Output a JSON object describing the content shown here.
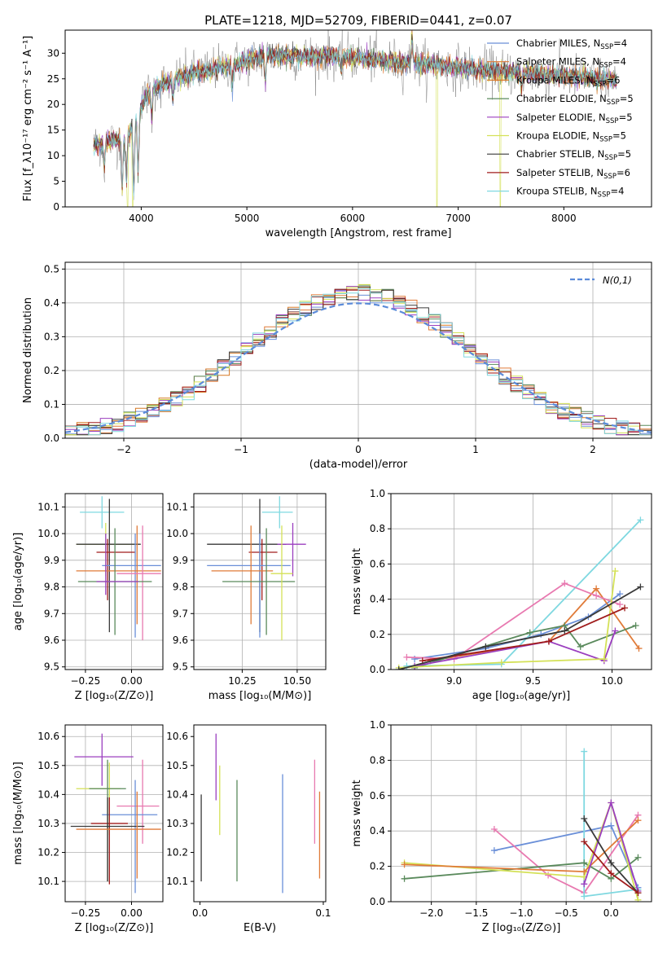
{
  "figure_title": "PLATE=1218, MJD=52709, FIBERID=0441, z=0.07",
  "colors": {
    "Chabrier MILES": "#6a8fd8",
    "Salpeter MILES": "#e07b39",
    "Kroupa MILES": "#d67824",
    "Chabrier ELODIE": "#5a8a5c",
    "Salpeter ELODIE": "#9b3fbf",
    "Kroupa ELODIE": "#d4e157",
    "Chabrier STELIB": "#3a3a3a",
    "Salpeter STELIB": "#a01c1c",
    "Kroupa STELIB": "#7fd8e0",
    "pink": "#e879b0",
    "grey": "#777777"
  },
  "chart_data": [
    {
      "id": "spectrum",
      "type": "line",
      "xlabel": "wavelength [Angstrom, rest frame]",
      "ylabel": "Flux [f_λ10^-17 erg cm^-2 s^-1 A^-1]",
      "xlim": [
        3280,
        8830
      ],
      "ylim": [
        0,
        34.5
      ],
      "xticks": [
        4000,
        5000,
        6000,
        7000,
        8000
      ],
      "yticks": [
        0,
        5,
        10,
        15,
        20,
        25,
        30
      ],
      "grid": false,
      "legend_position": "top-right",
      "legend": [
        {
          "label": "Chabrier MILES, N_SSP=4",
          "color": "#6a8fd8"
        },
        {
          "label": "Salpeter MILES, N_SSP=4",
          "color": "#e07b39"
        },
        {
          "label": "Kroupa MILES, N_SSP=6",
          "color": "#d67824"
        },
        {
          "label": "Chabrier ELODIE, N_SSP=5",
          "color": "#5a8a5c"
        },
        {
          "label": "Salpeter ELODIE, N_SSP=5",
          "color": "#9b3fbf"
        },
        {
          "label": "Kroupa ELODIE, N_SSP=5",
          "color": "#d4e157"
        },
        {
          "label": "Chabrier STELIB, N_SSP=5",
          "color": "#3a3a3a"
        },
        {
          "label": "Salpeter STELIB, N_SSP=6",
          "color": "#a01c1c"
        },
        {
          "label": "Kroupa STELIB, N_SSP=4",
          "color": "#7fd8e0"
        }
      ],
      "continuum": [
        [
          3550,
          12
        ],
        [
          3700,
          13
        ],
        [
          3850,
          13
        ],
        [
          3950,
          17
        ],
        [
          4050,
          22
        ],
        [
          4200,
          24
        ],
        [
          4400,
          25.5
        ],
        [
          4600,
          26.5
        ],
        [
          4800,
          27.5
        ],
        [
          5000,
          28.5
        ],
        [
          5200,
          29.5
        ],
        [
          5400,
          29.5
        ],
        [
          5600,
          29.3
        ],
        [
          5800,
          29.5
        ],
        [
          6000,
          29.2
        ],
        [
          6200,
          28.8
        ],
        [
          6400,
          28.3
        ],
        [
          6600,
          28
        ],
        [
          6800,
          27.6
        ],
        [
          7000,
          27.2
        ],
        [
          7200,
          26.8
        ],
        [
          7400,
          26.4
        ],
        [
          7600,
          26.2
        ],
        [
          7800,
          25.8
        ],
        [
          8000,
          25.6
        ],
        [
          8200,
          25.2
        ],
        [
          8400,
          24.8
        ],
        [
          8500,
          24.7
        ]
      ],
      "dips": [
        [
          3650,
          5
        ],
        [
          3820,
          10
        ],
        [
          3860,
          8
        ],
        [
          3930,
          13
        ],
        [
          3970,
          11
        ],
        [
          4100,
          5
        ],
        [
          4300,
          4
        ],
        [
          4861,
          4
        ],
        [
          5175,
          5
        ],
        [
          5890,
          3
        ],
        [
          6563,
          -5
        ],
        [
          7600,
          3
        ]
      ],
      "outliers": [
        [
          3870,
          0
        ],
        [
          3920,
          0
        ],
        [
          6800,
          0
        ],
        [
          7400,
          0
        ],
        [
          6560,
          34
        ]
      ]
    },
    {
      "id": "residuals",
      "type": "histogram",
      "xlabel": "(data-model)/error",
      "ylabel": "Normed distribution",
      "xlim": [
        -2.5,
        2.5
      ],
      "ylim": [
        0,
        0.52
      ],
      "xticks": [
        -2,
        -1,
        0,
        1,
        2
      ],
      "yticks": [
        0.0,
        0.1,
        0.2,
        0.3,
        0.4,
        0.5
      ],
      "grid": true,
      "legend_position": "top-right",
      "legend": [
        {
          "label": "N(0,1)",
          "color": "#5b8bd9"
        }
      ],
      "bin_width": 0.1,
      "series_colors": [
        "#6a8fd8",
        "#e07b39",
        "#d67824",
        "#5a8a5c",
        "#9b3fbf",
        "#d4e157",
        "#3a3a3a",
        "#a01c1c",
        "#7fd8e0"
      ]
    },
    {
      "id": "age_vs_Z",
      "type": "errorbar",
      "xlabel": "Z [log10(Z/Z⊙)]",
      "ylabel": "age [log10(age/yr)]",
      "xlim": [
        -0.36,
        0.17
      ],
      "ylim": [
        9.49,
        10.15
      ],
      "xticks": [
        -0.25,
        0.0
      ],
      "xtick_labels": [
        "−0.25",
        "0.00"
      ],
      "yticks": [
        9.5,
        9.6,
        9.7,
        9.8,
        9.9,
        10.0,
        10.1
      ],
      "grid": true,
      "points": [
        {
          "x": -0.16,
          "y": 10.08,
          "xerr": [
            0.12,
            0.12
          ],
          "yerr": [
            0.06,
            0.06
          ],
          "color": "#7fd8e0"
        },
        {
          "x": -0.14,
          "y": 9.96,
          "xerr": [
            0.16,
            0.16
          ],
          "yerr": [
            0.12,
            0.08
          ],
          "color": "#d4e157"
        },
        {
          "x": -0.12,
          "y": 9.96,
          "xerr": [
            0.18,
            0.17
          ],
          "yerr": [
            0.33,
            0.17
          ],
          "color": "#3a3a3a"
        },
        {
          "x": -0.13,
          "y": 9.93,
          "xerr": [
            0.06,
            0.15
          ],
          "yerr": [
            0.18,
            0.05
          ],
          "color": "#a01c1c"
        },
        {
          "x": 0.02,
          "y": 9.88,
          "xerr": [
            0.18,
            0.14
          ],
          "yerr": [
            0.27,
            0.12
          ],
          "color": "#6a8fd8"
        },
        {
          "x": 0.03,
          "y": 9.86,
          "xerr": [
            0.33,
            0.13
          ],
          "yerr": [
            0.2,
            0.17
          ],
          "color": "#e07b39"
        },
        {
          "x": 0.06,
          "y": 9.85,
          "xerr": [
            0.14,
            0.1
          ],
          "yerr": [
            0.25,
            0.18
          ],
          "color": "#e879b0"
        },
        {
          "x": -0.09,
          "y": 9.82,
          "xerr": [
            0.2,
            0.2
          ],
          "yerr": [
            0.2,
            0.2
          ],
          "color": "#5a8a5c"
        },
        {
          "x": -0.14,
          "y": 9.82,
          "xerr": [
            0.05,
            0.18
          ],
          "yerr": [
            0.05,
            0.18
          ],
          "color": "#9b3fbf"
        }
      ]
    },
    {
      "id": "age_vs_mass",
      "type": "errorbar",
      "xlabel": "mass [log10(M/M⊙)]",
      "ylabel": "",
      "xlim": [
        10.03,
        10.63
      ],
      "ylim": [
        9.49,
        10.15
      ],
      "xticks": [
        10.25,
        10.5
      ],
      "xtick_labels": [
        "10.25",
        "10.50"
      ],
      "yticks": [
        9.5,
        9.6,
        9.7,
        9.8,
        9.9,
        10.0,
        10.1
      ],
      "grid": true,
      "points": [
        {
          "x": 10.42,
          "y": 10.08,
          "xerr": [
            0.08,
            0.06
          ],
          "yerr": [
            0.06,
            0.06
          ],
          "color": "#7fd8e0"
        },
        {
          "x": 10.33,
          "y": 9.96,
          "xerr": [
            0.24,
            0.12
          ],
          "yerr": [
            0.33,
            0.17
          ],
          "color": "#3a3a3a"
        },
        {
          "x": 10.48,
          "y": 9.96,
          "xerr": [
            0.07,
            0.06
          ],
          "yerr": [
            0.12,
            0.08
          ],
          "color": "#9b3fbf"
        },
        {
          "x": 10.34,
          "y": 9.93,
          "xerr": [
            0.06,
            0.07
          ],
          "yerr": [
            0.18,
            0.05
          ],
          "color": "#a01c1c"
        },
        {
          "x": 10.33,
          "y": 9.88,
          "xerr": [
            0.24,
            0.14
          ],
          "yerr": [
            0.27,
            0.12
          ],
          "color": "#6a8fd8"
        },
        {
          "x": 10.29,
          "y": 9.86,
          "xerr": [
            0.18,
            0.1
          ],
          "yerr": [
            0.2,
            0.17
          ],
          "color": "#e07b39"
        },
        {
          "x": 10.36,
          "y": 9.82,
          "xerr": [
            0.2,
            0.13
          ],
          "yerr": [
            0.2,
            0.2
          ],
          "color": "#5a8a5c"
        },
        {
          "x": 10.43,
          "y": 9.85,
          "xerr": [
            0.05,
            0.05
          ],
          "yerr": [
            0.25,
            0.18
          ],
          "color": "#d4e157"
        }
      ]
    },
    {
      "id": "weight_vs_age",
      "type": "line",
      "xlabel": "age [log10(age/yr)]",
      "ylabel": "mass weight",
      "xlim": [
        8.6,
        10.25
      ],
      "ylim": [
        0,
        1.0
      ],
      "xticks": [
        9.0,
        9.5,
        10.0
      ],
      "yticks": [
        0.0,
        0.2,
        0.4,
        0.6,
        0.8,
        1.0
      ],
      "grid": true,
      "series": [
        {
          "color": "#6a8fd8",
          "x": [
            8.75,
            9.2,
            9.55,
            9.85,
            10.05
          ],
          "y": [
            0.06,
            0.12,
            0.2,
            0.3,
            0.43
          ]
        },
        {
          "color": "#7fd8e0",
          "x": [
            8.7,
            9.3,
            10.18
          ],
          "y": [
            0.02,
            0.03,
            0.85
          ]
        },
        {
          "color": "#e07b39",
          "x": [
            8.85,
            9.6,
            9.9,
            10.17
          ],
          "y": [
            0.05,
            0.16,
            0.46,
            0.12
          ]
        },
        {
          "color": "#e879b0",
          "x": [
            8.7,
            9.0,
            9.7,
            9.9,
            10.05
          ],
          "y": [
            0.07,
            0.06,
            0.49,
            0.42,
            0.37
          ]
        },
        {
          "color": "#5a8a5c",
          "x": [
            8.75,
            9.48,
            9.7,
            9.8,
            10.15
          ],
          "y": [
            0.01,
            0.21,
            0.25,
            0.13,
            0.25
          ]
        },
        {
          "color": "#9b3fbf",
          "x": [
            8.75,
            9.6,
            9.95,
            10.02
          ],
          "y": [
            0.02,
            0.16,
            0.05,
            0.22
          ]
        },
        {
          "color": "#d4e157",
          "x": [
            8.65,
            9.3,
            9.95,
            10.02
          ],
          "y": [
            0.01,
            0.04,
            0.06,
            0.56
          ]
        },
        {
          "color": "#a01c1c",
          "x": [
            8.8,
            9.6,
            10.08
          ],
          "y": [
            0.05,
            0.16,
            0.35
          ]
        },
        {
          "color": "#3a3a3a",
          "x": [
            8.65,
            9.2,
            9.7,
            10.18
          ],
          "y": [
            0.0,
            0.13,
            0.22,
            0.47
          ]
        }
      ]
    },
    {
      "id": "mass_vs_Z",
      "type": "errorbar",
      "xlabel": "Z [log10(Z/Z⊙)]",
      "ylabel": "mass [log10(M/M⊙)]",
      "xlim": [
        -0.36,
        0.17
      ],
      "ylim": [
        10.03,
        10.64
      ],
      "xticks": [
        -0.25,
        0.0
      ],
      "xtick_labels": [
        "−0.25",
        "0.00"
      ],
      "yticks": [
        10.1,
        10.2,
        10.3,
        10.4,
        10.5,
        10.6
      ],
      "grid": true,
      "points": [
        {
          "x": -0.16,
          "y": 10.53,
          "xerr": [
            0.15,
            0.17
          ],
          "yerr": [
            0.1,
            0.08
          ],
          "color": "#9b3fbf"
        },
        {
          "x": -0.12,
          "y": 10.42,
          "xerr": [
            0.18,
            0.06
          ],
          "yerr": [
            0.16,
            0.09
          ],
          "color": "#d4e157"
        },
        {
          "x": -0.13,
          "y": 10.42,
          "xerr": [
            0.1,
            0.1
          ],
          "yerr": [
            0.32,
            0.1
          ],
          "color": "#5a8a5c"
        },
        {
          "x": 0.06,
          "y": 10.36,
          "xerr": [
            0.14,
            0.09
          ],
          "yerr": [
            0.13,
            0.16
          ],
          "color": "#e879b0"
        },
        {
          "x": 0.02,
          "y": 10.33,
          "xerr": [
            0.18,
            0.12
          ],
          "yerr": [
            0.27,
            0.12
          ],
          "color": "#6a8fd8"
        },
        {
          "x": -0.12,
          "y": 10.3,
          "xerr": [
            0.1,
            0.1
          ],
          "yerr": [
            0.21,
            0.09
          ],
          "color": "#a01c1c"
        },
        {
          "x": -0.13,
          "y": 10.29,
          "xerr": [
            0.2,
            0.2
          ],
          "yerr": [
            0.19,
            0.1
          ],
          "color": "#3a3a3a"
        },
        {
          "x": 0.03,
          "y": 10.28,
          "xerr": [
            0.33,
            0.13
          ],
          "yerr": [
            0.17,
            0.13
          ],
          "color": "#e07b39"
        }
      ]
    },
    {
      "id": "mass_vs_ebv",
      "type": "errorbar",
      "xlabel": "E(B-V)",
      "ylabel": "",
      "xlim": [
        -0.005,
        0.102
      ],
      "ylim": [
        10.03,
        10.64
      ],
      "xticks": [
        0.0,
        0.1
      ],
      "xtick_labels": [
        "0.0",
        "0.1"
      ],
      "yticks": [
        10.1,
        10.2,
        10.3,
        10.4,
        10.5,
        10.6
      ],
      "grid": false,
      "points": [
        {
          "x": 0.013,
          "y": 10.5,
          "xerr": [
            0,
            0
          ],
          "yerr": [
            0.12,
            0.11
          ],
          "color": "#9b3fbf"
        },
        {
          "x": 0.016,
          "y": 10.4,
          "xerr": [
            0,
            0
          ],
          "yerr": [
            0.14,
            0.1
          ],
          "color": "#d4e157"
        },
        {
          "x": 0.03,
          "y": 10.33,
          "xerr": [
            0,
            0
          ],
          "yerr": [
            0.23,
            0.12
          ],
          "color": "#5a8a5c"
        },
        {
          "x": 0.067,
          "y": 10.35,
          "xerr": [
            0,
            0
          ],
          "yerr": [
            0.29,
            0.12
          ],
          "color": "#6a8fd8"
        },
        {
          "x": 0.093,
          "y": 10.4,
          "xerr": [
            0,
            0
          ],
          "yerr": [
            0.17,
            0.12
          ],
          "color": "#e879b0"
        },
        {
          "x": 0.097,
          "y": 10.3,
          "xerr": [
            0,
            0
          ],
          "yerr": [
            0.19,
            0.11
          ],
          "color": "#e07b39"
        },
        {
          "x": 0.001,
          "y": 10.3,
          "xerr": [
            0,
            0
          ],
          "yerr": [
            0.2,
            0.1
          ],
          "color": "#3a3a3a"
        }
      ]
    },
    {
      "id": "weight_vs_Z",
      "type": "line",
      "xlabel": "Z [log10(Z/Z⊙)]",
      "ylabel": "mass weight",
      "xlim": [
        -2.45,
        0.45
      ],
      "ylim": [
        0,
        1.0
      ],
      "xticks": [
        -2.0,
        -1.5,
        -1.0,
        -0.5,
        0.0
      ],
      "xtick_labels": [
        "−2.0",
        "−1.5",
        "−1.0",
        "−0.5",
        "0.0"
      ],
      "yticks": [
        0.0,
        0.2,
        0.4,
        0.6,
        0.8,
        1.0
      ],
      "grid": true,
      "series": [
        {
          "color": "#6a8fd8",
          "x": [
            -1.3,
            0.0,
            0.3
          ],
          "y": [
            0.29,
            0.43,
            0.08
          ]
        },
        {
          "color": "#e879b0",
          "x": [
            -1.3,
            -0.7,
            -0.3,
            0.3
          ],
          "y": [
            0.41,
            0.15,
            0.05,
            0.49
          ]
        },
        {
          "color": "#7fd8e0",
          "x": [
            -0.3,
            -0.3,
            0.3
          ],
          "y": [
            0.85,
            0.03,
            0.07
          ]
        },
        {
          "color": "#5a8a5c",
          "x": [
            -2.3,
            -0.3,
            0.0,
            0.3
          ],
          "y": [
            0.13,
            0.22,
            0.13,
            0.25
          ]
        },
        {
          "color": "#d4e157",
          "x": [
            -2.3,
            -0.3,
            0.0,
            0.3
          ],
          "y": [
            0.22,
            0.14,
            0.56,
            0.01
          ]
        },
        {
          "color": "#e07b39",
          "x": [
            -2.3,
            -0.3,
            0.3
          ],
          "y": [
            0.21,
            0.17,
            0.46
          ]
        },
        {
          "color": "#9b3fbf",
          "x": [
            -0.3,
            0.0,
            0.3
          ],
          "y": [
            0.1,
            0.56,
            0.06
          ]
        },
        {
          "color": "#3a3a3a",
          "x": [
            -0.3,
            0.0,
            0.3
          ],
          "y": [
            0.47,
            0.22,
            0.05
          ]
        },
        {
          "color": "#a01c1c",
          "x": [
            -0.3,
            0.0,
            0.3
          ],
          "y": [
            0.34,
            0.16,
            0.05
          ]
        }
      ]
    }
  ]
}
